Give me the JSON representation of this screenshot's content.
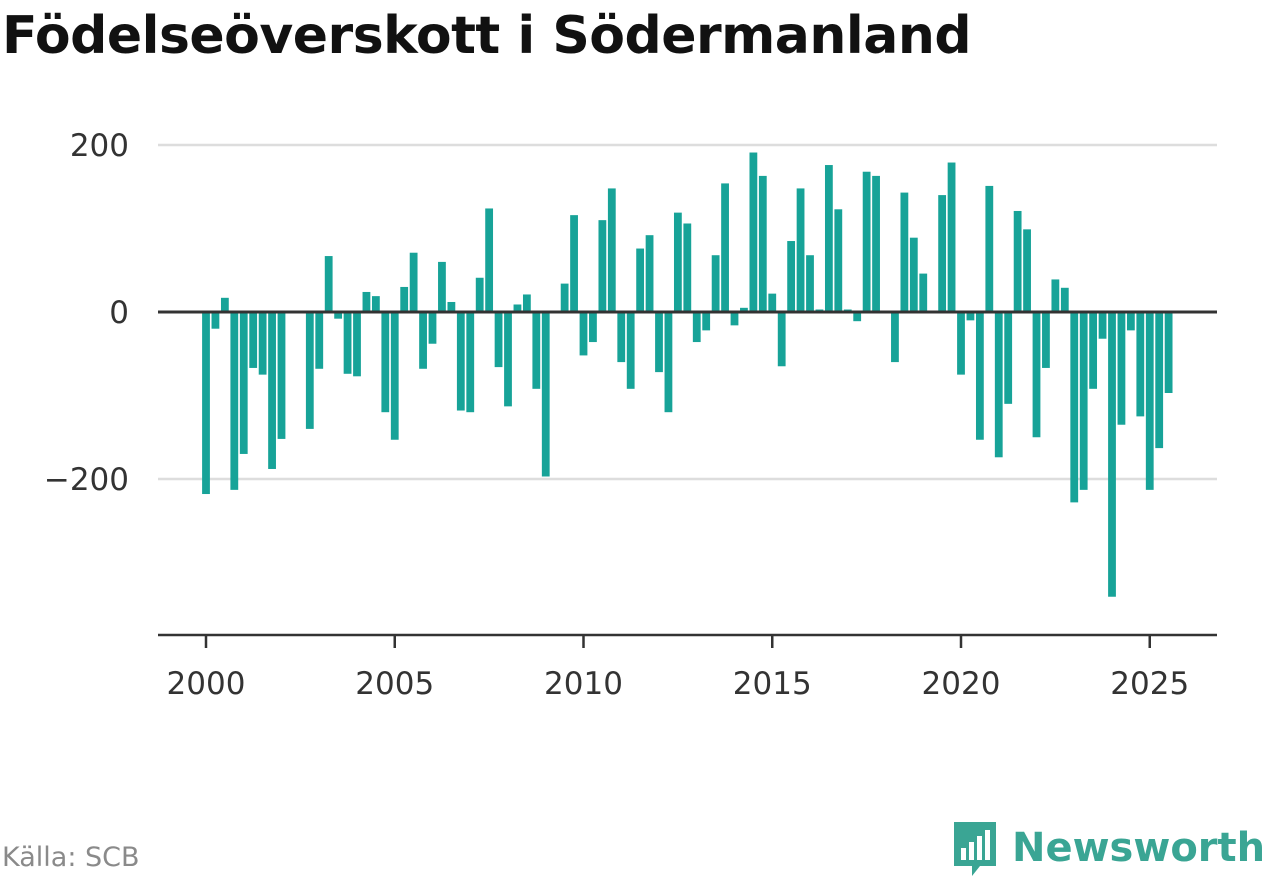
{
  "title": "Födelseöverskott i Södermanland",
  "source": "Källa: SCB",
  "brand": {
    "name": "Newsworthy",
    "icon": "bar-chart-speech-bubble-icon",
    "color": "#3aa594"
  },
  "colors": {
    "bar": "#17a398",
    "zero_line": "#333333",
    "grid": "#dddddd",
    "axis": "#333333"
  },
  "chart_data": {
    "type": "bar",
    "title": "Födelseöverskott i Södermanland",
    "xlabel": "",
    "ylabel": "",
    "grid": true,
    "ylim": [
      -390,
      200
    ],
    "yticks": [
      200,
      0,
      -200
    ],
    "ytick_labels": [
      "200",
      "0",
      "−200"
    ],
    "xticks": [
      2000,
      2005,
      2010,
      2015,
      2020,
      2025
    ],
    "xtick_labels": [
      "2000",
      "2005",
      "2010",
      "2015",
      "2020",
      "2025"
    ],
    "period": "quarterly",
    "x_start": 2000,
    "values": [
      -218,
      -20,
      17,
      -213,
      -170,
      -67,
      -75,
      -188,
      -152,
      0,
      0,
      -140,
      -68,
      67,
      -8,
      -74,
      -77,
      24,
      19,
      -120,
      -153,
      30,
      71,
      -68,
      -38,
      60,
      12,
      -118,
      -120,
      41,
      124,
      -66,
      -113,
      9,
      21,
      -92,
      -197,
      0,
      34,
      116,
      -52,
      -36,
      110,
      148,
      -60,
      -92,
      76,
      92,
      -72,
      -120,
      119,
      106,
      -36,
      -22,
      68,
      154,
      -16,
      5,
      191,
      163,
      22,
      -65,
      85,
      148,
      68,
      3,
      176,
      123,
      3,
      -11,
      168,
      163,
      0,
      -60,
      143,
      89,
      46,
      0,
      140,
      179,
      -75,
      -10,
      -153,
      151,
      -174,
      -110,
      121,
      99,
      -150,
      -67,
      39,
      29,
      -228,
      -213,
      -92,
      -32,
      -341,
      -135,
      -22,
      -125,
      -213,
      -163,
      -97
    ]
  }
}
